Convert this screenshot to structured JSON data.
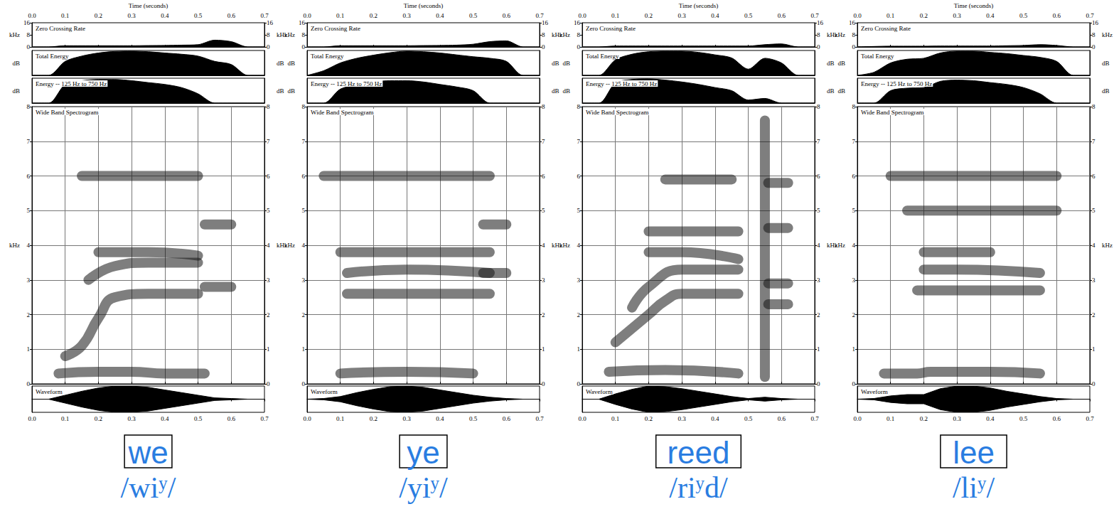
{
  "chart_data": [
    {
      "type": "spectrogram",
      "word": "we",
      "transcription": "/wiʸ/",
      "xlabel": "Time (seconds)",
      "xlim": [
        0,
        0.7
      ],
      "xticks": [
        {
          "value": 0,
          "label": "0.0"
        },
        0.1,
        0.2,
        0.3,
        0.4,
        0.5,
        0.6,
        0.7
      ],
      "x": [
        0,
        0.05,
        0.1,
        0.15,
        0.2,
        0.25,
        0.3,
        0.35,
        0.4,
        0.45,
        0.5,
        0.55,
        0.6,
        0.65,
        0.7
      ],
      "zero_crossing_rate": {
        "title": "Zero Crossing Rate",
        "unit": "kHz",
        "ylim": [
          0,
          16
        ],
        "yticks": [
          0,
          8,
          16
        ],
        "values": [
          0,
          0,
          0.8,
          0.8,
          0.8,
          0.8,
          0.8,
          0.9,
          1.0,
          1.2,
          1.5,
          4.5,
          3.5,
          0,
          0
        ]
      },
      "total_energy": {
        "title": "Total Energy",
        "unit": "dB",
        "ylim": [
          0,
          80
        ],
        "values": [
          0,
          0,
          45,
          62,
          72,
          77,
          78,
          76,
          72,
          68,
          62,
          45,
          35,
          0,
          0
        ]
      },
      "low_band_energy": {
        "title": "Energy -- 125 Hz to 750 Hz",
        "unit": "dB",
        "ylim": [
          0,
          80
        ],
        "values": [
          0,
          0,
          60,
          72,
          76,
          76,
          72,
          66,
          60,
          50,
          30,
          0,
          0,
          0,
          0
        ]
      },
      "spectrogram": {
        "title": "Wide Band Spectrogram",
        "unit": "kHz",
        "ylim": [
          0,
          8
        ],
        "yticks": [
          0,
          1,
          2,
          3,
          4,
          5,
          6,
          7,
          8
        ],
        "grid": true,
        "bands": [
          {
            "x": [
              0.08,
              0.2,
              0.3,
              0.4,
              0.52
            ],
            "values": [
              0.3,
              0.35,
              0.35,
              0.3,
              0.3
            ]
          },
          {
            "x": [
              0.1,
              0.15,
              0.2,
              0.25,
              0.35,
              0.5
            ],
            "values": [
              0.8,
              1.1,
              1.9,
              2.5,
              2.6,
              2.6
            ]
          },
          {
            "x": [
              0.17,
              0.25,
              0.35,
              0.5
            ],
            "values": [
              3.0,
              3.4,
              3.5,
              3.5
            ]
          },
          {
            "x": [
              0.2,
              0.35,
              0.5
            ],
            "values": [
              3.8,
              3.8,
              3.7
            ]
          },
          {
            "x": [
              0.15,
              0.3,
              0.5
            ],
            "values": [
              6,
              6,
              6
            ]
          },
          {
            "x": [
              0.52,
              0.6
            ],
            "values": [
              2.8,
              2.8
            ]
          },
          {
            "x": [
              0.52,
              0.6
            ],
            "values": [
              4.6,
              4.6
            ]
          }
        ]
      },
      "waveform": {
        "title": "Waveform",
        "ylim": [
          -1,
          1
        ],
        "values": [
          0,
          0,
          0.3,
          0.6,
          0.85,
          1,
          1,
          0.9,
          0.7,
          0.5,
          0.3,
          0.1,
          0.05,
          0,
          0
        ]
      }
    },
    {
      "type": "spectrogram",
      "word": "ye",
      "transcription": "/yiʸ/",
      "xlabel": "Time (seconds)",
      "xlim": [
        0,
        0.7
      ],
      "xticks": [
        {
          "value": 0,
          "label": "0.0"
        },
        0.1,
        0.2,
        0.3,
        0.4,
        0.5,
        0.6,
        0.7
      ],
      "x": [
        0,
        0.05,
        0.1,
        0.15,
        0.2,
        0.25,
        0.3,
        0.35,
        0.4,
        0.45,
        0.5,
        0.55,
        0.6,
        0.65,
        0.7
      ],
      "zero_crossing_rate": {
        "title": "Zero Crossing Rate",
        "unit": "kHz",
        "ylim": [
          0,
          16
        ],
        "yticks": [
          0,
          8,
          16
        ],
        "values": [
          0,
          0,
          0.8,
          0.8,
          0.8,
          0.8,
          0.8,
          0.9,
          1.0,
          1.2,
          1.8,
          3.5,
          4,
          0,
          0
        ]
      },
      "total_energy": {
        "title": "Total Energy",
        "unit": "dB",
        "ylim": [
          0,
          80
        ],
        "values": [
          0,
          15,
          40,
          55,
          65,
          73,
          78,
          76,
          72,
          66,
          60,
          55,
          45,
          0,
          0
        ]
      },
      "low_band_energy": {
        "title": "Energy -- 125 Hz to 750 Hz",
        "unit": "dB",
        "ylim": [
          0,
          80
        ],
        "values": [
          0,
          0,
          45,
          58,
          68,
          72,
          72,
          68,
          60,
          52,
          40,
          0,
          0,
          0,
          0
        ]
      },
      "spectrogram": {
        "title": "Wide Band Spectrogram",
        "unit": "kHz",
        "ylim": [
          0,
          8
        ],
        "yticks": [
          0,
          1,
          2,
          3,
          4,
          5,
          6,
          7,
          8
        ],
        "grid": true,
        "bands": [
          {
            "x": [
              0.1,
              0.3,
              0.5
            ],
            "values": [
              0.3,
              0.35,
              0.3
            ]
          },
          {
            "x": [
              0.12,
              0.3,
              0.55
            ],
            "values": [
              2.6,
              2.6,
              2.6
            ]
          },
          {
            "x": [
              0.12,
              0.3,
              0.55
            ],
            "values": [
              3.2,
              3.3,
              3.2
            ]
          },
          {
            "x": [
              0.1,
              0.3,
              0.55
            ],
            "values": [
              3.8,
              3.8,
              3.8
            ]
          },
          {
            "x": [
              0.05,
              0.3,
              0.55
            ],
            "values": [
              6,
              6,
              6
            ]
          },
          {
            "x": [
              0.53,
              0.6
            ],
            "values": [
              4.6,
              4.6
            ]
          },
          {
            "x": [
              0.53,
              0.6
            ],
            "values": [
              3.2,
              3.2
            ]
          }
        ]
      },
      "waveform": {
        "title": "Waveform",
        "ylim": [
          -1,
          1
        ],
        "values": [
          0,
          0.05,
          0.2,
          0.5,
          0.75,
          0.95,
          1,
          0.9,
          0.7,
          0.5,
          0.3,
          0.15,
          0.05,
          0,
          0
        ]
      }
    },
    {
      "type": "spectrogram",
      "word": "reed",
      "transcription": "/riʸd/",
      "xlabel": "Time (seconds)",
      "xlim": [
        0,
        0.7
      ],
      "xticks": [
        {
          "value": 0,
          "label": "0.0"
        },
        0.1,
        0.2,
        0.3,
        0.4,
        0.5,
        0.6,
        0.7
      ],
      "x": [
        0,
        0.05,
        0.1,
        0.15,
        0.2,
        0.25,
        0.3,
        0.35,
        0.4,
        0.45,
        0.5,
        0.55,
        0.6,
        0.65,
        0.7
      ],
      "zero_crossing_rate": {
        "title": "Zero Crossing Rate",
        "unit": "kHz",
        "ylim": [
          0,
          16
        ],
        "yticks": [
          0,
          8,
          16
        ],
        "values": [
          0,
          0,
          0.6,
          0.6,
          0.6,
          0.6,
          0.6,
          0.6,
          0.6,
          0.6,
          0.6,
          1.5,
          2,
          0,
          0
        ]
      },
      "total_energy": {
        "title": "Total Energy",
        "unit": "dB",
        "ylim": [
          0,
          80
        ],
        "values": [
          0,
          0,
          50,
          68,
          76,
          78,
          78,
          74,
          66,
          56,
          20,
          55,
          40,
          0,
          0
        ]
      },
      "low_band_energy": {
        "title": "Energy -- 125 Hz to 750 Hz",
        "unit": "dB",
        "ylim": [
          0,
          80
        ],
        "values": [
          0,
          0,
          65,
          76,
          78,
          74,
          68,
          60,
          50,
          40,
          10,
          15,
          0,
          0,
          0
        ]
      },
      "spectrogram": {
        "title": "Wide Band Spectrogram",
        "unit": "kHz",
        "ylim": [
          0,
          8
        ],
        "yticks": [
          0,
          1,
          2,
          3,
          4,
          5,
          6,
          7,
          8
        ],
        "grid": true,
        "bands": [
          {
            "x": [
              0.08,
              0.25,
              0.47
            ],
            "values": [
              0.35,
              0.4,
              0.3
            ]
          },
          {
            "x": [
              0.1,
              0.15,
              0.2,
              0.25,
              0.3,
              0.47
            ],
            "values": [
              1.2,
              1.6,
              2.0,
              2.4,
              2.6,
              2.6
            ]
          },
          {
            "x": [
              0.15,
              0.2,
              0.3,
              0.47
            ],
            "values": [
              2.2,
              2.8,
              3.3,
              3.3
            ]
          },
          {
            "x": [
              0.2,
              0.3,
              0.47
            ],
            "values": [
              3.8,
              3.8,
              3.6
            ]
          },
          {
            "x": [
              0.2,
              0.47
            ],
            "values": [
              4.4,
              4.4
            ]
          },
          {
            "x": [
              0.25,
              0.45
            ],
            "values": [
              5.9,
              5.9
            ]
          },
          {
            "x": [
              0.55,
              0.55
            ],
            "values": [
              0.2,
              7.6
            ]
          },
          {
            "x": [
              0.56,
              0.62
            ],
            "values": [
              2.3,
              2.3
            ]
          },
          {
            "x": [
              0.56,
              0.62
            ],
            "values": [
              2.9,
              2.9
            ]
          },
          {
            "x": [
              0.56,
              0.62
            ],
            "values": [
              4.5,
              4.5
            ]
          },
          {
            "x": [
              0.56,
              0.62
            ],
            "values": [
              5.8,
              5.8
            ]
          }
        ]
      },
      "waveform": {
        "title": "Waveform",
        "ylim": [
          -1,
          1
        ],
        "values": [
          0,
          0,
          0.4,
          0.75,
          1,
          0.95,
          0.8,
          0.6,
          0.4,
          0.2,
          0.05,
          0.15,
          0.05,
          0,
          0
        ]
      }
    },
    {
      "type": "spectrogram",
      "word": "lee",
      "transcription": "/liʸ/",
      "xlabel": "Time (seconds)",
      "xlim": [
        0,
        0.7
      ],
      "xticks": [
        {
          "value": 0,
          "label": "0.0"
        },
        0.1,
        0.2,
        0.3,
        0.4,
        0.5,
        0.6,
        0.7
      ],
      "x": [
        0,
        0.05,
        0.1,
        0.15,
        0.2,
        0.25,
        0.3,
        0.35,
        0.4,
        0.45,
        0.5,
        0.55,
        0.6,
        0.65,
        0.7
      ],
      "zero_crossing_rate": {
        "title": "Zero Crossing Rate",
        "unit": "kHz",
        "ylim": [
          0,
          16
        ],
        "yticks": [
          0,
          8,
          16
        ],
        "values": [
          0,
          0.3,
          0.5,
          0.5,
          0.5,
          0.6,
          0.6,
          0.6,
          0.6,
          0.8,
          1.0,
          1.5,
          1.0,
          0,
          0
        ]
      },
      "total_energy": {
        "title": "Total Energy",
        "unit": "dB",
        "ylim": [
          0,
          80
        ],
        "values": [
          0,
          10,
          40,
          52,
          55,
          72,
          78,
          78,
          74,
          70,
          64,
          58,
          45,
          0,
          0
        ]
      },
      "low_band_energy": {
        "title": "Energy -- 125 Hz to 750 Hz",
        "unit": "dB",
        "ylim": [
          0,
          80
        ],
        "values": [
          0,
          0,
          40,
          48,
          50,
          70,
          74,
          72,
          66,
          60,
          50,
          30,
          0,
          0,
          0
        ]
      },
      "spectrogram": {
        "title": "Wide Band Spectrogram",
        "unit": "kHz",
        "ylim": [
          0,
          8
        ],
        "yticks": [
          0,
          1,
          2,
          3,
          4,
          5,
          6,
          7,
          8
        ],
        "grid": true,
        "bands": [
          {
            "x": [
              0.08,
              0.18,
              0.22,
              0.4,
              0.55
            ],
            "values": [
              0.3,
              0.3,
              0.35,
              0.35,
              0.3
            ]
          },
          {
            "x": [
              0.18,
              0.3,
              0.55
            ],
            "values": [
              2.7,
              2.7,
              2.7
            ]
          },
          {
            "x": [
              0.2,
              0.3,
              0.55
            ],
            "values": [
              3.3,
              3.3,
              3.2
            ]
          },
          {
            "x": [
              0.2,
              0.4
            ],
            "values": [
              3.8,
              3.8
            ]
          },
          {
            "x": [
              0.1,
              0.6
            ],
            "values": [
              6,
              6
            ]
          },
          {
            "x": [
              0.15,
              0.6
            ],
            "values": [
              5,
              5
            ]
          }
        ]
      },
      "waveform": {
        "title": "Waveform",
        "ylim": [
          -1,
          1
        ],
        "values": [
          0,
          0.05,
          0.25,
          0.35,
          0.35,
          0.8,
          1,
          1,
          0.85,
          0.6,
          0.4,
          0.2,
          0.05,
          0,
          0
        ]
      }
    }
  ]
}
